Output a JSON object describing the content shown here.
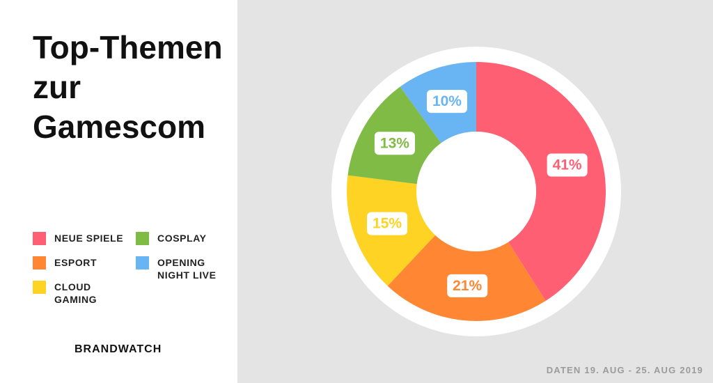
{
  "title_lines": [
    "Top-Themen",
    "zur",
    "Gamescom"
  ],
  "chart_data": {
    "type": "pie",
    "donut": true,
    "title": "Top-Themen zur Gamescom",
    "categories": [
      "NEUE SPIELE",
      "ESPORT",
      "CLOUD GAMING",
      "COSPLAY",
      "OPENING NIGHT LIVE"
    ],
    "values": [
      41,
      21,
      15,
      13,
      10
    ],
    "labels": [
      "41%",
      "21%",
      "15%",
      "13%",
      "10%"
    ],
    "colors": [
      "#ff5f73",
      "#ff8733",
      "#ffd324",
      "#80bb45",
      "#69b4f3"
    ],
    "legend_placement": "left"
  },
  "legend": [
    {
      "label": "NEUE SPIELE",
      "color": "#ff5f73"
    },
    {
      "label": "ESPORT",
      "color": "#ff8733"
    },
    {
      "label": "CLOUD\nGAMING",
      "color": "#ffd324"
    },
    {
      "label": "COSPLAY",
      "color": "#80bb45"
    },
    {
      "label": "OPENING\nNIGHT LIVE",
      "color": "#69b4f3"
    }
  ],
  "brand": "BRANDWATCH",
  "footer": "DATEN 19. AUG - 25. AUG 2019"
}
